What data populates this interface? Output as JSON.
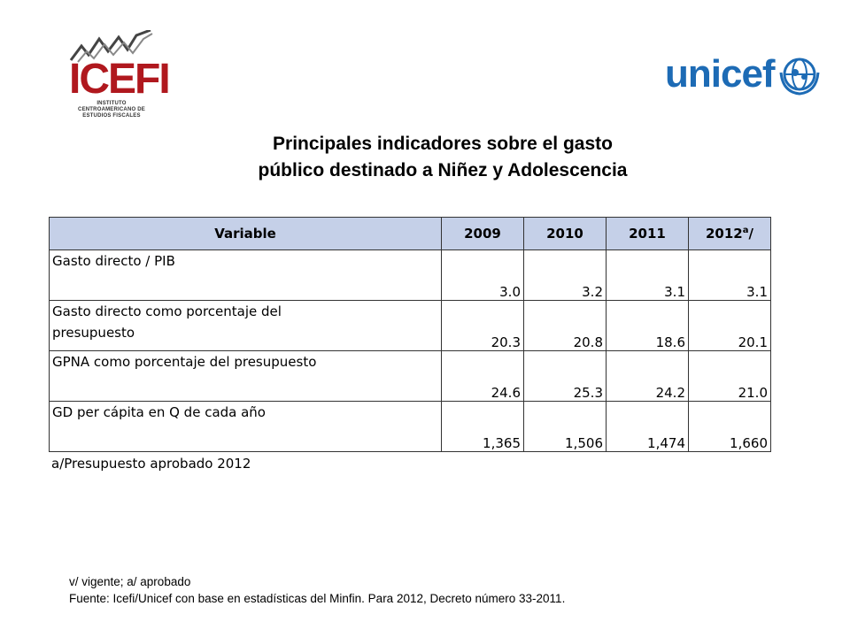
{
  "logos": {
    "icefi": {
      "name": "ICEFI",
      "subtitle": "INSTITUTO CENTROAMERICANO DE ESTUDIOS FISCALES",
      "color": "#b0181e"
    },
    "unicef": {
      "name": "unicef",
      "color": "#1d6bb5"
    }
  },
  "title": {
    "line1": "Principales indicadores sobre el gasto",
    "line2": "público destinado a Niñez y Adolescencia"
  },
  "table": {
    "header_color": "#c5d0e8",
    "columns": [
      "Variable",
      "2009",
      "2010",
      "2011",
      "2012"
    ],
    "last_col_superscript": "a",
    "last_col_suffix": "/",
    "rows": [
      {
        "label": "Gasto directo / PIB",
        "values": [
          "3.0",
          "3.2",
          "3.1",
          "3.1"
        ]
      },
      {
        "label": "Gasto directo como porcentaje del presupuesto",
        "values": [
          "20.3",
          "20.8",
          "18.6",
          "20.1"
        ]
      },
      {
        "label": "GPNA como porcentaje del presupuesto",
        "values": [
          "24.6",
          "25.3",
          "24.2",
          "21.0"
        ]
      },
      {
        "label": "GD per cápita en Q de cada año",
        "values": [
          "1,365",
          "1,506",
          "1,474",
          "1,660"
        ]
      }
    ]
  },
  "note": "a/Presupuesto aprobado 2012",
  "footer": {
    "line1": "v/ vigente; a/ aprobado",
    "line2": "Fuente: Icefi/Unicef con base en estadísticas del Minfin. Para 2012, Decreto número 33-2011."
  }
}
